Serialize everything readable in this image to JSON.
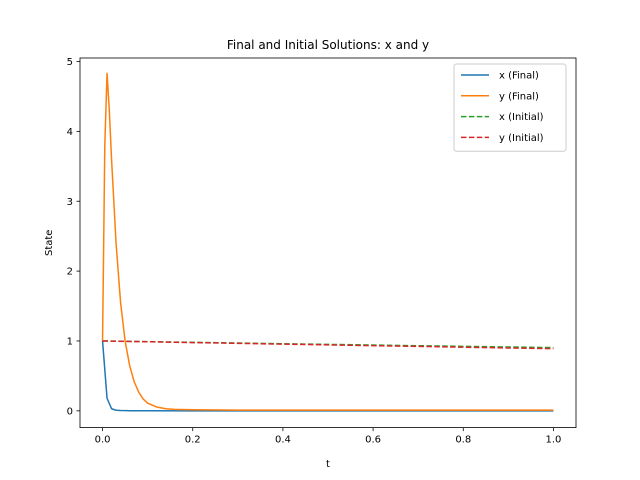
{
  "chart_data": {
    "type": "line",
    "title": "Final and Initial Solutions: x and y",
    "xlabel": "t",
    "ylabel": "State",
    "xlim": [
      -0.05,
      1.05
    ],
    "ylim": [
      -0.24,
      5.05
    ],
    "xticks": [
      0.0,
      0.2,
      0.4,
      0.6,
      0.8,
      1.0
    ],
    "xtick_labels": [
      "0.0",
      "0.2",
      "0.4",
      "0.6",
      "0.8",
      "1.0"
    ],
    "yticks": [
      0,
      1,
      2,
      3,
      4,
      5
    ],
    "ytick_labels": [
      "0",
      "1",
      "2",
      "3",
      "4",
      "5"
    ],
    "grid": false,
    "legend_position": "top-right",
    "series": [
      {
        "name": "x (Final)",
        "color": "#1f77b4",
        "dash": "solid",
        "x": [
          0.0,
          0.01,
          0.02,
          0.03,
          0.04,
          0.06,
          0.1,
          0.2,
          0.5,
          1.0
        ],
        "y": [
          1.0,
          0.18,
          0.03,
          0.008,
          0.004,
          0.002,
          0.001,
          0.0,
          0.0,
          0.0
        ]
      },
      {
        "name": "y (Final)",
        "color": "#ff7f0e",
        "dash": "solid",
        "x": [
          0.0,
          0.005,
          0.01,
          0.015,
          0.02,
          0.03,
          0.04,
          0.05,
          0.06,
          0.07,
          0.08,
          0.09,
          0.1,
          0.12,
          0.14,
          0.16,
          0.2,
          0.3,
          0.5,
          1.0
        ],
        "y": [
          1.0,
          3.8,
          4.83,
          4.3,
          3.6,
          2.4,
          1.55,
          1.0,
          0.65,
          0.42,
          0.27,
          0.17,
          0.11,
          0.055,
          0.03,
          0.02,
          0.015,
          0.01,
          0.01,
          0.01
        ]
      },
      {
        "name": "x (Initial)",
        "color": "#2ca02c",
        "dash": "dashed",
        "x": [
          0.0,
          0.1,
          0.2,
          0.3,
          0.4,
          0.5,
          0.6,
          0.7,
          0.8,
          0.9,
          1.0
        ],
        "y": [
          1.0,
          0.99,
          0.98,
          0.97,
          0.96,
          0.951,
          0.942,
          0.932,
          0.923,
          0.914,
          0.905
        ]
      },
      {
        "name": "y (Initial)",
        "color": "#d62728",
        "dash": "dashed",
        "x": [
          0.0,
          0.1,
          0.2,
          0.3,
          0.4,
          0.5,
          0.6,
          0.7,
          0.8,
          0.9,
          1.0
        ],
        "y": [
          1.0,
          0.989,
          0.977,
          0.966,
          0.955,
          0.944,
          0.933,
          0.922,
          0.911,
          0.9,
          0.89
        ]
      }
    ]
  }
}
